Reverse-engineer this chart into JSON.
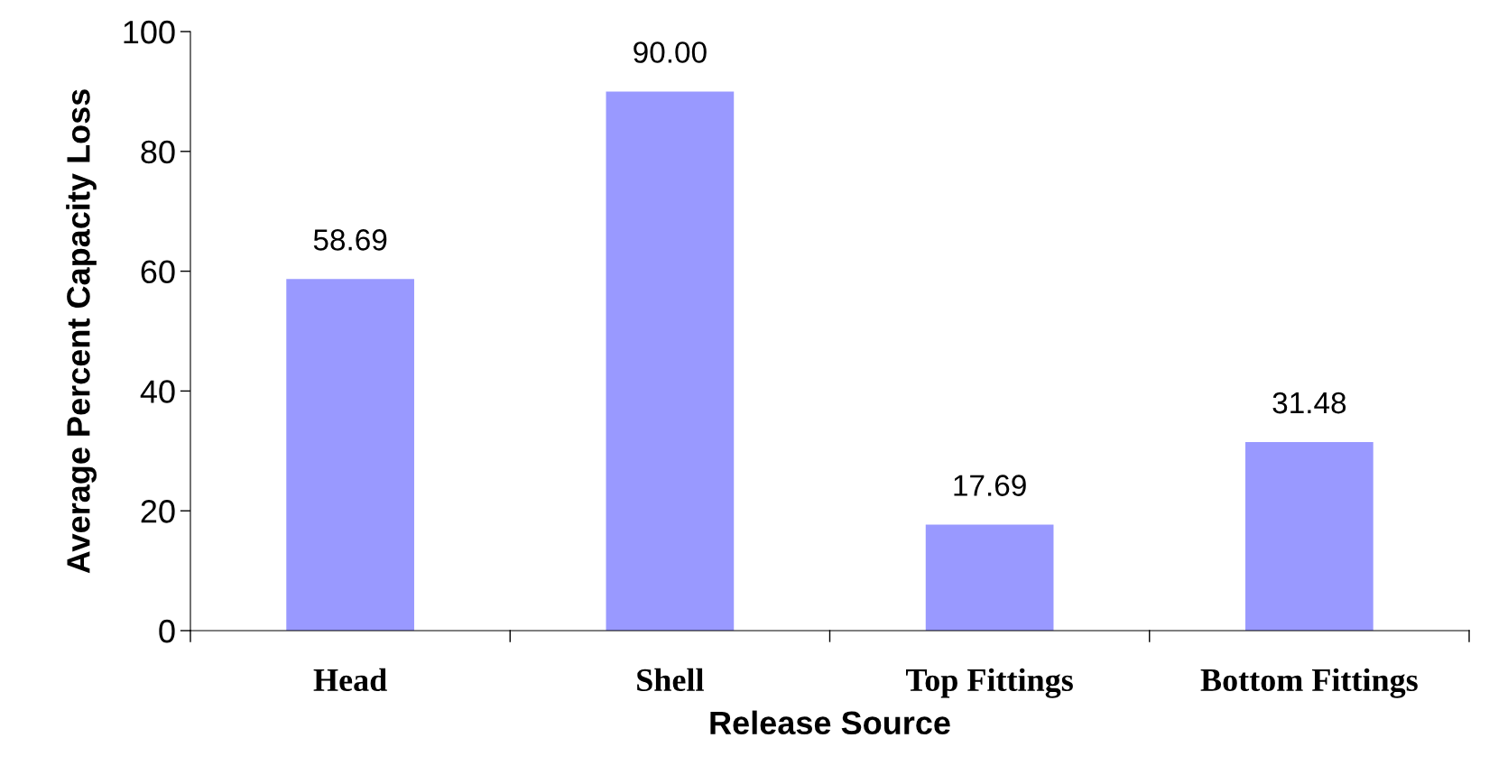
{
  "chart_data": {
    "type": "bar",
    "xlabel": "Release Source",
    "ylabel": "Average Percent Capacity Loss",
    "categories": [
      "Head",
      "Shell",
      "Top Fittings",
      "Bottom Fittings"
    ],
    "values": [
      58.69,
      90.0,
      17.69,
      31.48
    ],
    "value_labels": [
      "58.69",
      "90.00",
      "17.69",
      "31.48"
    ],
    "color": "#9999ff",
    "ylim": [
      0,
      100
    ],
    "yticks": [
      0,
      20,
      40,
      60,
      80,
      100
    ],
    "grid": false,
    "legend": false
  }
}
